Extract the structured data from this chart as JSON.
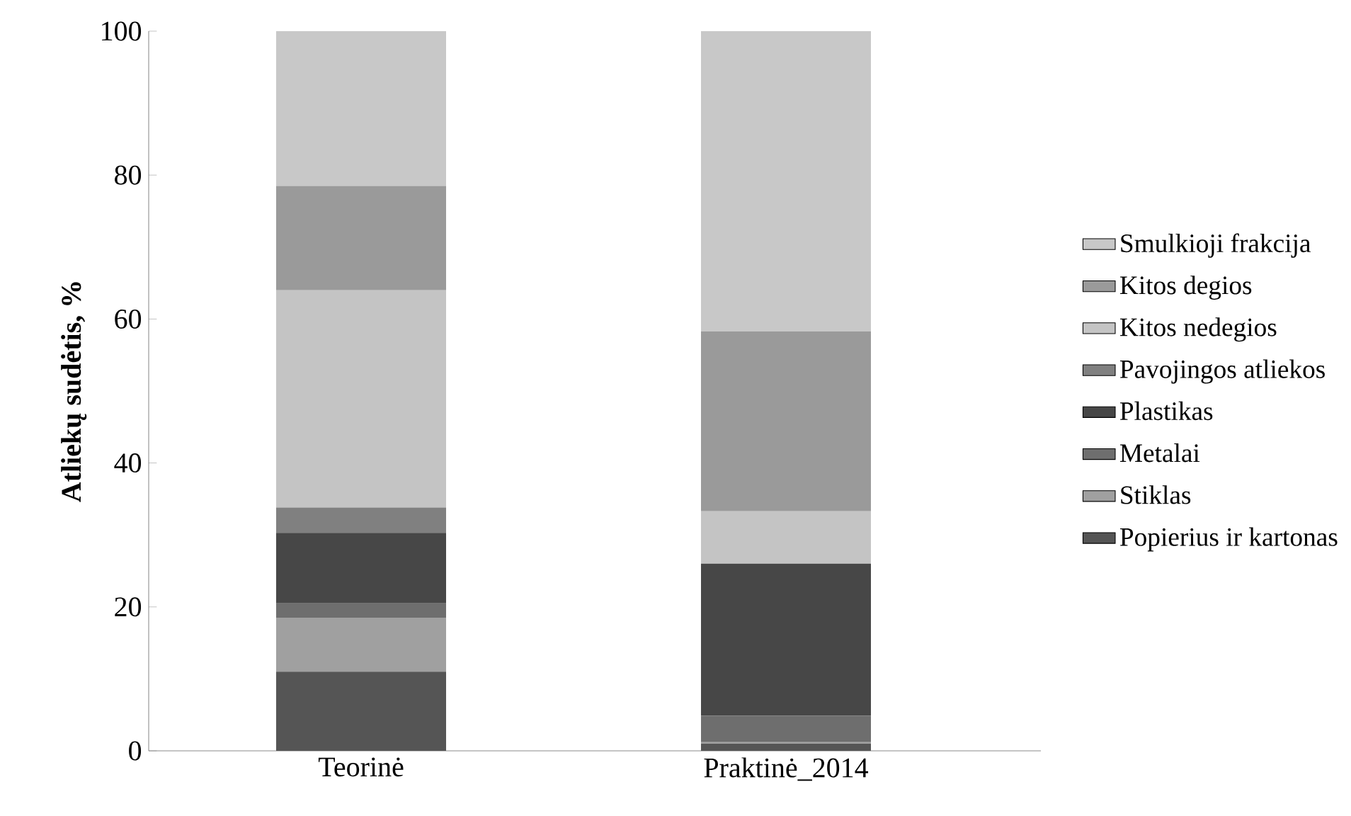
{
  "chart_data": {
    "type": "bar",
    "stacked": true,
    "ylabel": "Atliekų sudėtis, %",
    "categories": [
      "Teorinė",
      "Praktinė_2014"
    ],
    "ylim": [
      0,
      100
    ],
    "yticks": [
      0,
      20,
      40,
      60,
      80,
      100
    ],
    "legend": "right",
    "series": [
      {
        "name": "Popierius ir kartonas",
        "color": "#555555",
        "values": [
          11,
          1
        ]
      },
      {
        "name": "Stiklas",
        "color": "#a0a0a0",
        "values": [
          7.5,
          0.2
        ]
      },
      {
        "name": "Metalai",
        "color": "#6e6e6e",
        "values": [
          2,
          3.7
        ]
      },
      {
        "name": "Plastikas",
        "color": "#474747",
        "values": [
          9.8,
          21.1
        ]
      },
      {
        "name": "Pavojingos atliekos",
        "color": "#808080",
        "values": [
          3.5,
          0
        ]
      },
      {
        "name": "Kitos nedegios",
        "color": "#c4c4c4",
        "values": [
          30.2,
          7.3
        ]
      },
      {
        "name": "Kitos degios",
        "color": "#9a9a9a",
        "values": [
          14.5,
          25
        ]
      },
      {
        "name": "Smulkioji frakcija",
        "color": "#c8c8c8",
        "values": [
          21.5,
          41.7
        ]
      }
    ]
  }
}
